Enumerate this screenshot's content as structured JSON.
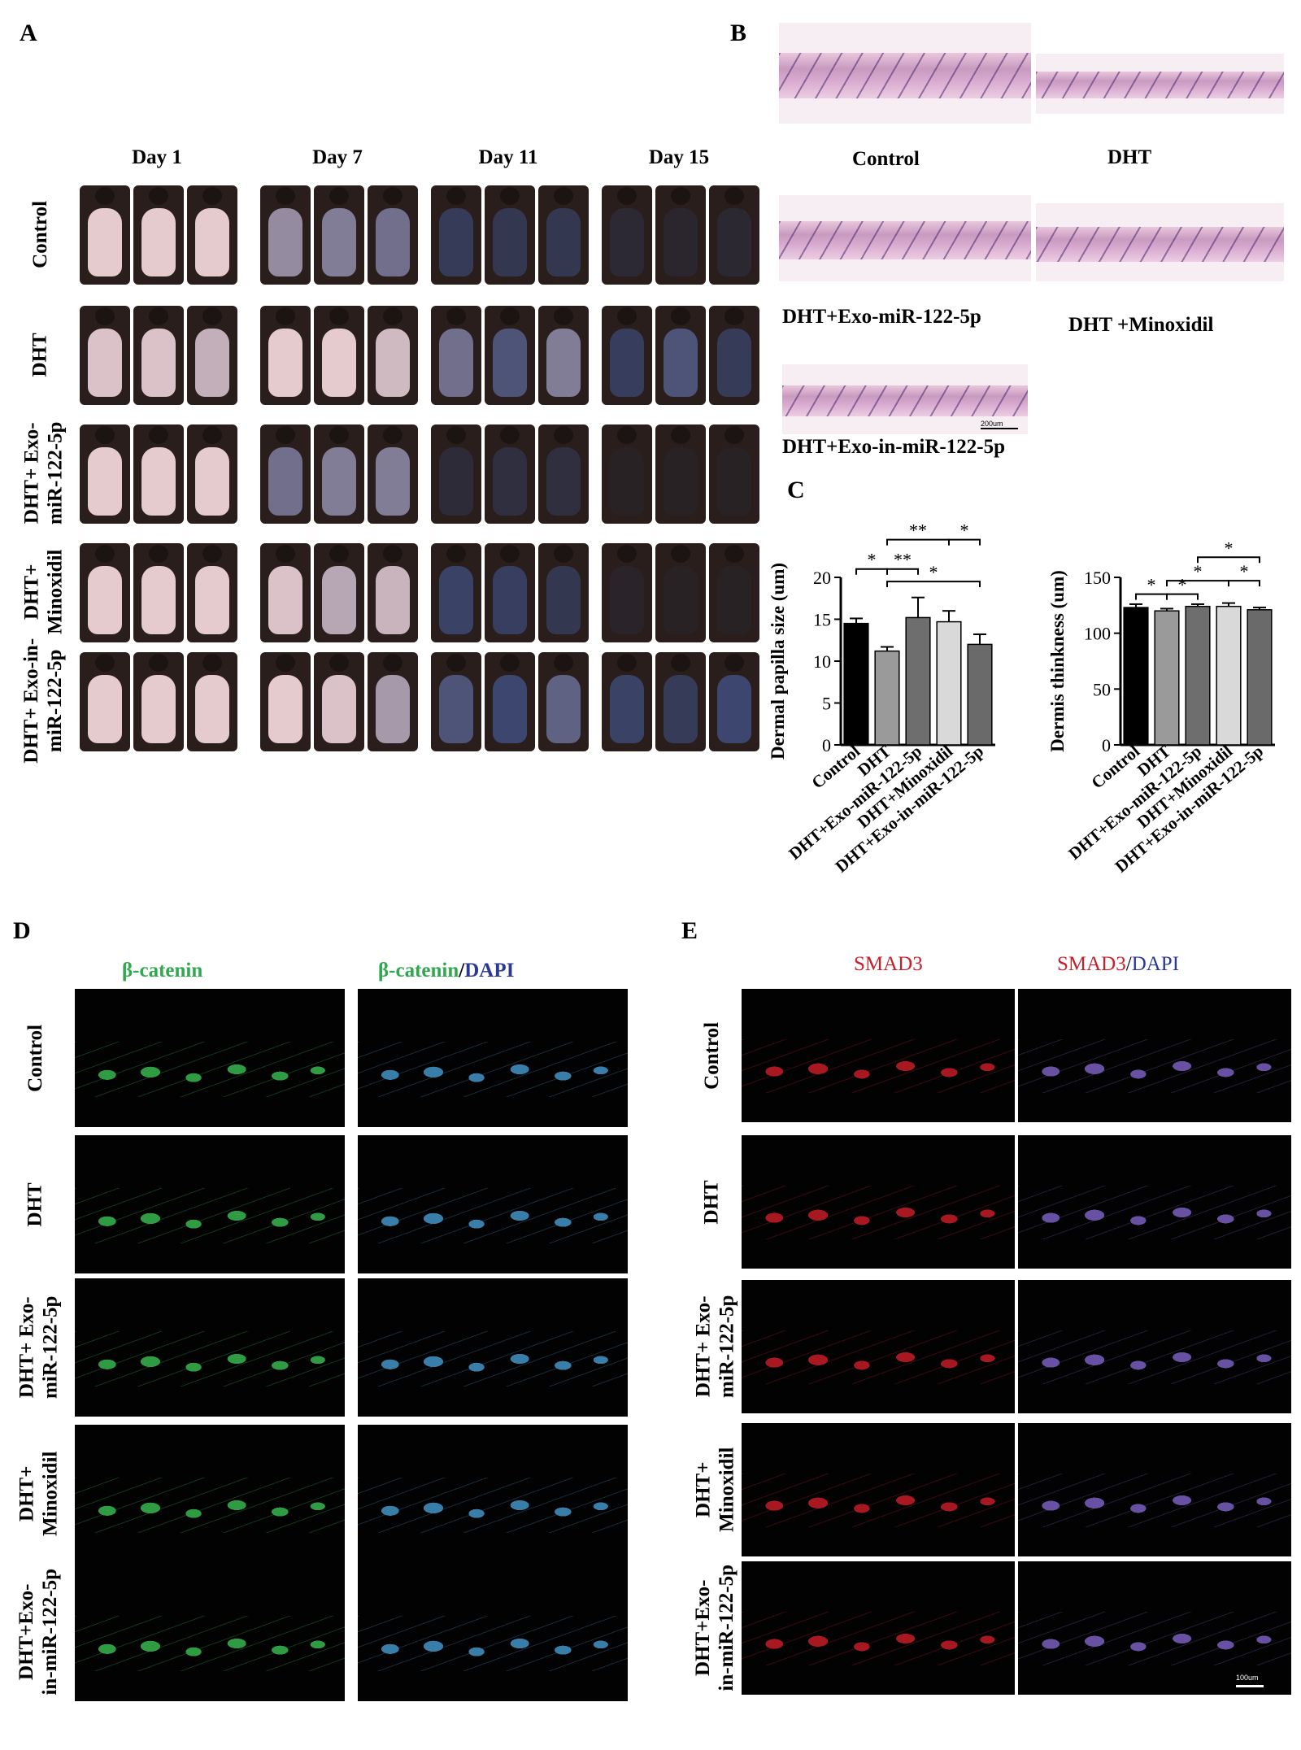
{
  "panels": {
    "A": "A",
    "B": "B",
    "C": "C",
    "D": "D",
    "E": "E"
  },
  "panelA": {
    "days": [
      "Day 1",
      "Day 7",
      "Day 11",
      "Day 15"
    ],
    "groups": [
      {
        "lines": [
          "Control"
        ]
      },
      {
        "lines": [
          "DHT"
        ]
      },
      {
        "lines": [
          "DHT+ Exo-",
          "miR-122-5p"
        ]
      },
      {
        "lines": [
          "DHT+",
          "Minoxidil"
        ]
      },
      {
        "lines": [
          "DHT+ Exo-in-",
          "miR-122-5p"
        ]
      }
    ],
    "hair_level": [
      [
        0.02,
        0.02,
        0.02,
        0.25,
        0.3,
        0.35,
        0.65,
        0.7,
        0.7,
        0.88,
        0.92,
        0.9
      ],
      [
        0.05,
        0.05,
        0.12,
        0.02,
        0.02,
        0.08,
        0.35,
        0.45,
        0.3,
        0.62,
        0.45,
        0.65
      ],
      [
        0.02,
        0.02,
        0.02,
        0.35,
        0.3,
        0.3,
        0.85,
        0.8,
        0.8,
        0.98,
        0.98,
        0.98
      ],
      [
        0.02,
        0.02,
        0.02,
        0.05,
        0.15,
        0.1,
        0.55,
        0.6,
        0.7,
        0.95,
        0.98,
        0.98
      ],
      [
        0.02,
        0.02,
        0.02,
        0.02,
        0.05,
        0.2,
        0.45,
        0.5,
        0.4,
        0.55,
        0.65,
        0.5
      ]
    ]
  },
  "panelB": {
    "labels": [
      "Control",
      "DHT",
      "DHT+Exo-miR-122-5p",
      "DHT +Minoxidil",
      "DHT+Exo-in-miR-122-5p"
    ],
    "scale_bar": "200um"
  },
  "panelC": {
    "chart_data": [
      {
        "type": "bar",
        "ylabel": "Dermal papilla size (um)",
        "categories": [
          "Control",
          "DHT",
          "DHT+Exo-miR-122-5p",
          "DHT+Minoxidil",
          "DHT+Exo-in-miR-122-5p"
        ],
        "values": [
          14.5,
          11.2,
          15.2,
          14.7,
          12.0
        ],
        "errors": [
          0.6,
          0.5,
          2.4,
          1.3,
          1.2
        ],
        "ylim": [
          0,
          20
        ],
        "yticks": [
          "0",
          "5",
          "10",
          "15",
          "20"
        ],
        "bar_colors": [
          "#000000",
          "#9a9a9a",
          "#6e6e6e",
          "#d9d9d9",
          "#6a6a6a"
        ],
        "significance": [
          {
            "from": 0,
            "to": 1,
            "label": "*",
            "level": 21.0
          },
          {
            "from": 1,
            "to": 2,
            "label": "**",
            "level": 21.0
          },
          {
            "from": 1,
            "to": 3,
            "label": "**",
            "level": 24.5
          },
          {
            "from": 3,
            "to": 4,
            "label": "*",
            "level": 24.5
          },
          {
            "from": 1,
            "to": 4,
            "label": "*",
            "level": 19.5
          }
        ]
      },
      {
        "type": "bar",
        "ylabel": "Dermis thinkness (um)",
        "categories": [
          "Control",
          "DHT",
          "DHT+Exo-miR-122-5p",
          "DHT+Minoxidil",
          "DHT+Exo-in-miR-122-5p"
        ],
        "values": [
          123,
          120,
          124,
          124,
          121
        ],
        "errors": [
          3,
          2,
          2,
          3,
          2
        ],
        "ylim": [
          0,
          150
        ],
        "yticks": [
          "0",
          "50",
          "100",
          "150"
        ],
        "bar_colors": [
          "#000000",
          "#9a9a9a",
          "#6e6e6e",
          "#d9d9d9",
          "#6a6a6a"
        ],
        "significance": [
          {
            "from": 0,
            "to": 1,
            "label": "*",
            "level": 135
          },
          {
            "from": 1,
            "to": 2,
            "label": "*",
            "level": 135
          },
          {
            "from": 1,
            "to": 3,
            "label": "*",
            "level": 147
          },
          {
            "from": 2,
            "to": 4,
            "label": "*",
            "level": 168
          },
          {
            "from": 3,
            "to": 4,
            "label": "*",
            "level": 147
          }
        ]
      }
    ]
  },
  "panelD": {
    "col1": "β-catenin",
    "col2_a": "β-catenin",
    "col2_sep": "/",
    "col2_b": "DAPI",
    "groups": [
      {
        "lines": [
          "Control"
        ]
      },
      {
        "lines": [
          "DHT"
        ]
      },
      {
        "lines": [
          "DHT+ Exo-",
          "miR-122-5p"
        ]
      },
      {
        "lines": [
          "DHT+",
          "Minoxidil"
        ]
      },
      {
        "lines": [
          "DHT+Exo-",
          "in-miR-122-5p"
        ]
      }
    ]
  },
  "panelE": {
    "col1": "SMAD3",
    "col2_a": "SMAD3",
    "col2_sep": "/",
    "col2_b": "DAPI",
    "groups": [
      {
        "lines": [
          "Control"
        ]
      },
      {
        "lines": [
          "DHT"
        ]
      },
      {
        "lines": [
          "DHT+ Exo-",
          "miR-122-5p"
        ]
      },
      {
        "lines": [
          "DHT+",
          "Minoxidil"
        ]
      },
      {
        "lines": [
          "DHT+Exo-",
          "in-miR-122-5p"
        ]
      }
    ],
    "scale_bar": "100um"
  },
  "colors": {
    "green": "#2fa84f",
    "red": "#c8202a",
    "blue": "#2b3896",
    "photo_fur": "#2a1e1c",
    "photo_skin": "#ecd0d2"
  }
}
